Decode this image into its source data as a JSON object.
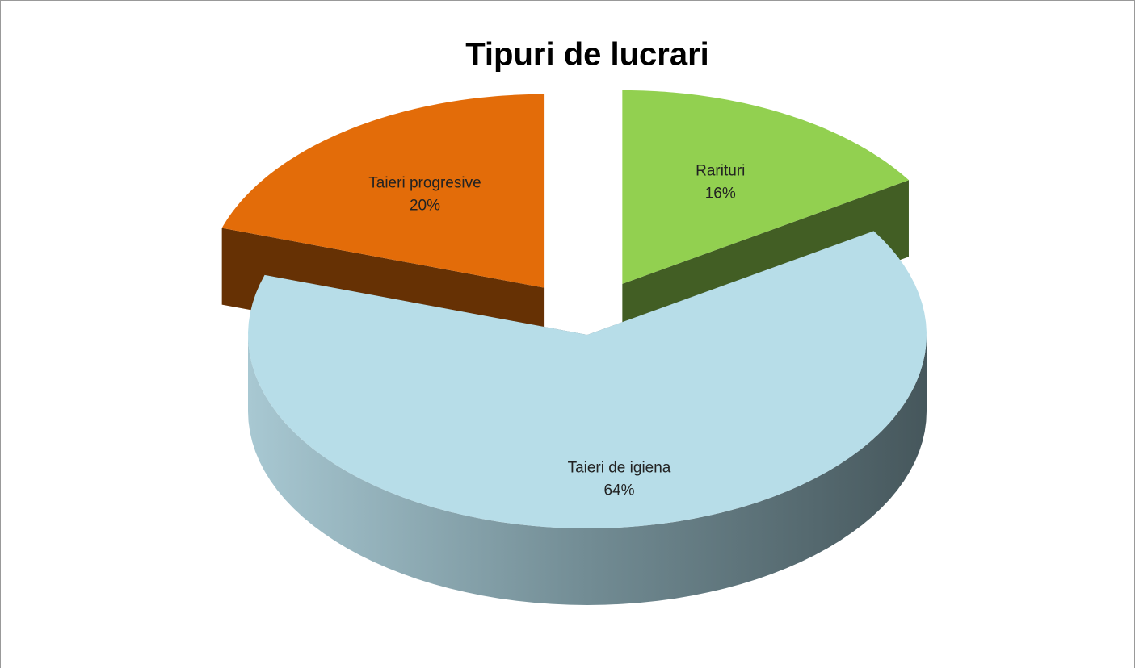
{
  "chart_data": {
    "type": "pie",
    "title": "Tipuri de lucrari",
    "categories": [
      "Rarituri",
      "Taieri de igiena",
      "Taieri progresive"
    ],
    "values": [
      16,
      64,
      20
    ],
    "value_labels": [
      "16%",
      "64%",
      "20%"
    ],
    "colors": [
      "#92d050",
      "#b7dde8",
      "#e36c09"
    ]
  }
}
